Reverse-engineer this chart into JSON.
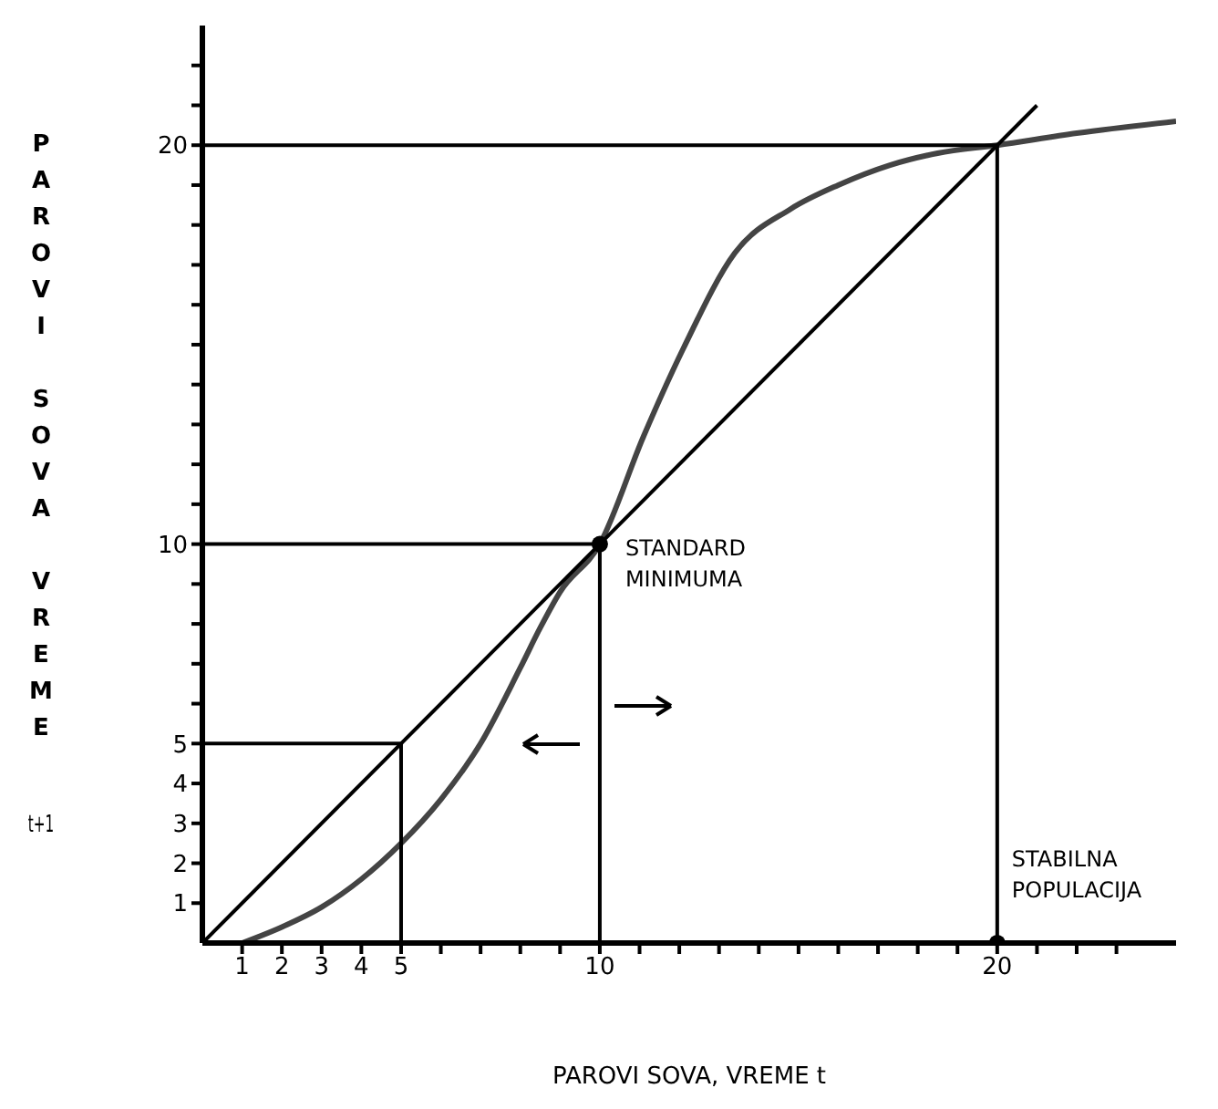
{
  "chart_data": {
    "type": "line",
    "xlabel": "PAROVI SOVA, VREME t",
    "ylabel": "PAROVI SOVA VREME t+1",
    "xlim": [
      0,
      24.5
    ],
    "ylim": [
      0,
      23
    ],
    "xticks": [
      1,
      2,
      3,
      4,
      5,
      {
        "value": 6,
        "label": null
      },
      {
        "value": 7,
        "label": null
      },
      {
        "value": 8,
        "label": null
      },
      {
        "value": 9,
        "label": null
      },
      10,
      {
        "value": 11,
        "label": null
      },
      {
        "value": 12,
        "label": null
      },
      {
        "value": 13,
        "label": null
      },
      {
        "value": 14,
        "label": null
      },
      {
        "value": 15,
        "label": null
      },
      {
        "value": 16,
        "label": null
      },
      {
        "value": 17,
        "label": null
      },
      {
        "value": 18,
        "label": null
      },
      {
        "value": 19,
        "label": null
      },
      20,
      {
        "value": 21,
        "label": null
      },
      {
        "value": 22,
        "label": null
      },
      {
        "value": 23,
        "label": null
      }
    ],
    "yticks": [
      1,
      2,
      3,
      4,
      5,
      {
        "value": 6,
        "label": null
      },
      {
        "value": 7,
        "label": null
      },
      {
        "value": 8,
        "label": null
      },
      {
        "value": 9,
        "label": null
      },
      10,
      {
        "value": 11,
        "label": null
      },
      {
        "value": 12,
        "label": null
      },
      {
        "value": 13,
        "label": null
      },
      {
        "value": 14,
        "label": null
      },
      {
        "value": 15,
        "label": null
      },
      {
        "value": 16,
        "label": null
      },
      {
        "value": 17,
        "label": null
      },
      {
        "value": 18,
        "label": null
      },
      {
        "value": 19,
        "label": null
      },
      20,
      {
        "value": 21,
        "label": null
      },
      {
        "value": 22,
        "label": null
      }
    ],
    "marker": "none",
    "line_style": "solid",
    "series": [
      {
        "type": "line",
        "color": "#444444",
        "x": [
          1,
          2,
          3,
          4,
          5,
          6,
          7,
          8,
          8.5,
          9,
          10,
          11.1,
          12.1,
          13.4,
          14.8,
          16,
          17.3,
          18.5,
          20,
          22,
          24.5
        ],
        "values": [
          0,
          0.4,
          0.9,
          1.6,
          2.5,
          3.6,
          5,
          6.9,
          7.9,
          8.8,
          10,
          12.7,
          14.9,
          17.3,
          18.4,
          19,
          19.5,
          19.8,
          20,
          20.3,
          20.6
        ]
      },
      {
        "type": "line",
        "color": "#000000",
        "x": [
          0,
          21
        ],
        "values": [
          0,
          21
        ]
      },
      {
        "type": "line",
        "color": "#000000",
        "x": [
          0,
          5,
          5
        ],
        "values": [
          5,
          5,
          0
        ]
      },
      {
        "type": "line",
        "color": "#000000",
        "x": [
          0,
          10,
          10
        ],
        "values": [
          10,
          10,
          0
        ]
      },
      {
        "type": "line",
        "color": "#000000",
        "x": [
          0,
          20,
          20
        ],
        "values": [
          20,
          20,
          0
        ]
      },
      {
        "type": "scatter",
        "color": "#000000",
        "marker": "circle",
        "x": [
          10,
          20
        ],
        "values": [
          10,
          0
        ]
      }
    ],
    "annotations": [
      {
        "text": "STANDARD MINIMUMA",
        "x": 10,
        "y": 10
      },
      {
        "text": "STABILNA POPULACIJA",
        "x": 20,
        "y": 0
      }
    ]
  }
}
